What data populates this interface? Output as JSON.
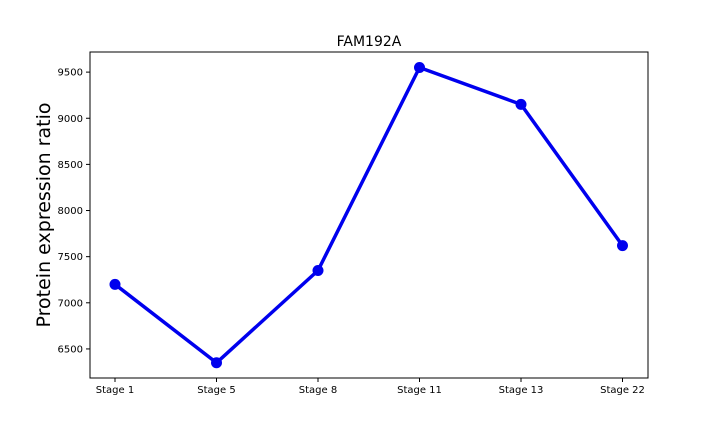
{
  "chart_data": {
    "type": "line",
    "title": "FAM192A",
    "xlabel": "",
    "ylabel": "Protein expression ratio",
    "categories": [
      "Stage 1",
      "Stage 5",
      "Stage 8",
      "Stage 11",
      "Stage 13",
      "Stage 22"
    ],
    "series": [
      {
        "values": [
          7200,
          6350,
          7350,
          9550,
          9150,
          7620
        ],
        "color": "#0000ee"
      }
    ],
    "ylim": [
      6185,
      9718
    ],
    "yticks": [
      6500,
      7000,
      7500,
      8000,
      8500,
      9000,
      9500
    ],
    "grid": false,
    "legend": "none"
  }
}
